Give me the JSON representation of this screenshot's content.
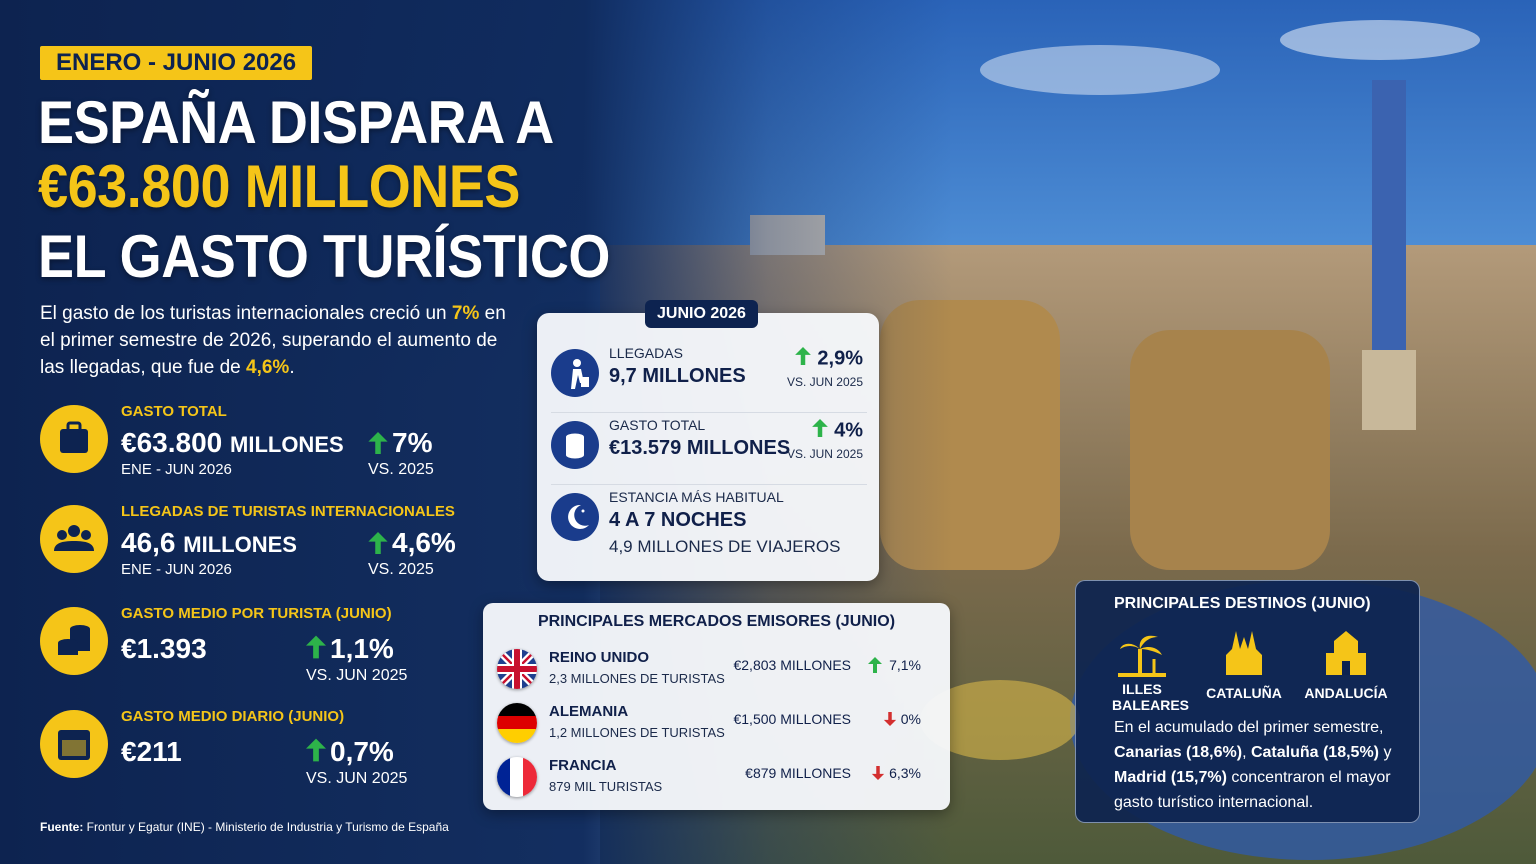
{
  "badge": "ENERO - JUNIO 2026",
  "title": {
    "line1": "ESPAÑA DISPARA A",
    "line2": "€63.800 MILLONES",
    "line3": "EL GASTO TURÍSTICO"
  },
  "intro": [
    "El gasto de los turistas internacionales creció un ",
    "7%",
    " en el primer semestre de 2026, superando el aumento de las llegadas, que fue de ",
    "4,6%",
    "."
  ],
  "stats": [
    {
      "label": "GASTO TOTAL",
      "value": "€63.800",
      "unit": "MILLONES",
      "period": "ENE - JUN 2026",
      "change": "7%",
      "compare": "VS. 2025"
    },
    {
      "label": "LLEGADAS DE TURISTAS INTERNACIONALES",
      "value": "46,6",
      "unit": "MILLONES",
      "period": "ENE - JUN 2026",
      "change": "4,6%",
      "compare": "VS. 2025"
    },
    {
      "label": "GASTO MEDIO POR TURISTA (JUNIO)",
      "value": "€1.393",
      "change": "1,1%",
      "compare": "VS. JUN 2025"
    },
    {
      "label": "GASTO MEDIO DIARIO (JUNIO)",
      "value": "€211",
      "change": "0,7%",
      "compare": "VS. JUN 2025"
    }
  ],
  "june": {
    "badge": "JUNIO 2026",
    "items": [
      {
        "label": "LLEGADAS",
        "value": "9,7 MILLONES",
        "change": "2,9%",
        "compare": "VS. JUN 2025"
      },
      {
        "label": "GASTO TOTAL",
        "value": "€13.579 MILLONES",
        "change": "4%",
        "compare": "VS. JUN 2025"
      },
      {
        "label": "ESTANCIA MÁS HABITUAL",
        "value": "4 A 7 NOCHES",
        "note": "4,9 MILLONES DE VIAJEROS"
      }
    ]
  },
  "markets": {
    "title": "PRINCIPALES MERCADOS EMISORES (JUNIO)",
    "rows": [
      {
        "country": "REINO UNIDO",
        "tourists": "2,3 MILLONES DE TURISTAS",
        "spend": "€2,803 MILLONES",
        "change": "7,1%",
        "direction": "up"
      },
      {
        "country": "ALEMANIA",
        "tourists": "1,2 MILLONES DE TURISTAS",
        "spend": "€1,500 MILLONES",
        "change": "0%",
        "direction": "down"
      },
      {
        "country": "FRANCIA",
        "tourists": "879 MIL TURISTAS",
        "spend": "€879 MILLONES",
        "change": "6,3%",
        "direction": "down"
      }
    ]
  },
  "destinations": {
    "title": "PRINCIPALES DESTINOS (JUNIO)",
    "items": [
      "ILLES BALEARES",
      "CATALUÑA",
      "ANDALUCÍA"
    ],
    "text": [
      "En el acumulado del primer semestre, ",
      "Canarias (18,6%)",
      ", ",
      "Cataluña (18,5%)",
      " y ",
      "Madrid (15,7%)",
      " concentraron el mayor gasto turístico internacional."
    ]
  },
  "source": {
    "label": "Fuente:",
    "text": " Frontur y Egatur (INE) - Ministerio de Industria y Turismo de España"
  }
}
